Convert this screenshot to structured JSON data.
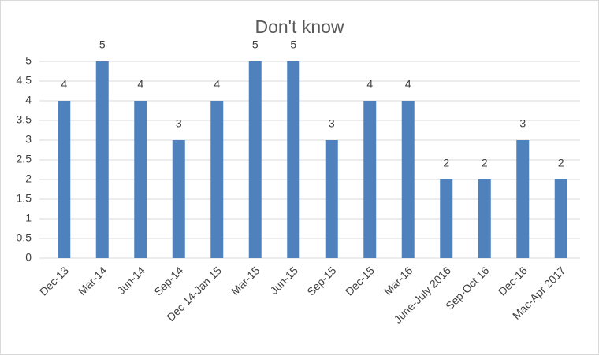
{
  "chart_data": {
    "type": "bar",
    "title": "Don't know",
    "categories": [
      "Dec-13",
      "Mar-14",
      "Jun-14",
      "Sep-14",
      "Dec 14-Jan 15",
      "Mar-15",
      "Jun-15",
      "Sep-15",
      "Dec-15",
      "Mar-16",
      "June-July 2016",
      "Sep-Oct 16",
      "Dec-16",
      "Mac-Apr 2017"
    ],
    "values": [
      4,
      5,
      4,
      3,
      4,
      5,
      5,
      3,
      4,
      4,
      2,
      2,
      3,
      2
    ],
    "color": "#4f81bd",
    "ylim": [
      0,
      5
    ],
    "yticks": [
      0,
      0.5,
      1,
      1.5,
      2,
      2.5,
      3,
      3.5,
      4,
      4.5,
      5
    ],
    "grid": true
  }
}
